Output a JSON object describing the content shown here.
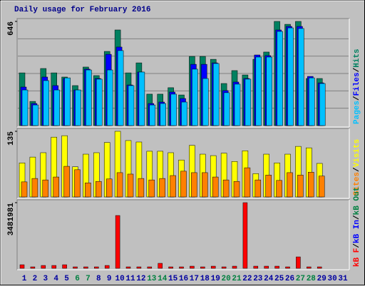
{
  "chart_data": [
    {
      "type": "bar",
      "title": "Daily usage for February 2016",
      "ylim": [
        0,
        646
      ],
      "yticks": [
        646
      ],
      "legend_separator": "/",
      "series": [
        {
          "name": "Hits",
          "color": "#008060",
          "values": [
            327,
            150,
            354,
            327,
            301,
            248,
            363,
            310,
            460,
            593,
            327,
            389,
            195,
            195,
            235,
            190,
            429,
            429,
            411,
            261,
            341,
            314,
            411,
            456,
            646,
            628,
            646,
            292,
            292,
            null,
            null
          ]
        },
        {
          "name": "Files",
          "color": "#0000ff",
          "values": [
            239,
            137,
            301,
            248,
            292,
            221,
            350,
            292,
            442,
            487,
            252,
            332,
            137,
            146,
            208,
            168,
            380,
            380,
            389,
            217,
            270,
            292,
            438,
            434,
            593,
            615,
            615,
            305,
            265,
            null,
            null
          ]
        },
        {
          "name": "Pages",
          "color": "#00c0ff",
          "values": [
            221,
            128,
            279,
            221,
            296,
            221,
            345,
            288,
            345,
            465,
            248,
            332,
            128,
            137,
            195,
            146,
            350,
            292,
            385,
            204,
            257,
            288,
            425,
            425,
            584,
            606,
            602,
            296,
            261,
            null,
            null
          ]
        }
      ]
    },
    {
      "type": "bar",
      "ylim": [
        0,
        135
      ],
      "yticks": [
        135
      ],
      "legend_separator": "/",
      "series": [
        {
          "name": "Visits",
          "color": "#ffff00",
          "values": [
            70,
            82,
            91,
            123,
            126,
            62,
            88,
            91,
            112,
            135,
            116,
            113,
            94,
            94,
            91,
            76,
            106,
            88,
            85,
            90,
            73,
            95,
            48,
            88,
            70,
            88,
            104,
            101,
            69,
            null,
            null
          ]
        },
        {
          "name": "Sites",
          "color": "#ff8000",
          "values": [
            31,
            38,
            35,
            41,
            63,
            56,
            29,
            32,
            37,
            50,
            47,
            38,
            35,
            38,
            44,
            53,
            50,
            50,
            41,
            35,
            32,
            60,
            35,
            45,
            34,
            50,
            45,
            51,
            43,
            null,
            null
          ]
        }
      ]
    },
    {
      "type": "bar",
      "ylim": [
        0,
        3481981
      ],
      "yticks": [
        3481981
      ],
      "legend_separator": "/",
      "categories": [
        "1",
        "2",
        "3",
        "4",
        "5",
        "6",
        "7",
        "8",
        "9",
        "10",
        "11",
        "12",
        "13",
        "14",
        "15",
        "16",
        "17",
        "18",
        "19",
        "20",
        "21",
        "22",
        "23",
        "24",
        "25",
        "26",
        "27",
        "28",
        "29",
        "30",
        "31"
      ],
      "category_colors": [
        "#0000a0",
        "#0000a0",
        "#0000a0",
        "#0000a0",
        "#0000a0",
        "#008040",
        "#008040",
        "#0000a0",
        "#0000a0",
        "#0000a0",
        "#0000a0",
        "#0000a0",
        "#008040",
        "#008040",
        "#0000a0",
        "#0000a0",
        "#0000a0",
        "#0000a0",
        "#0000a0",
        "#008040",
        "#008040",
        "#0000a0",
        "#0000a0",
        "#0000a0",
        "#0000a0",
        "#0000a0",
        "#008040",
        "#008040",
        "#0000a0",
        "#0000a0",
        "#0000a0"
      ],
      "series": [
        {
          "name": "kB F",
          "color": "#ff0000",
          "values": [
            189000,
            76000,
            151000,
            151000,
            189000,
            76000,
            76000,
            76000,
            151000,
            2800724,
            76000,
            76000,
            76000,
            265000,
            76000,
            76000,
            113000,
            76000,
            113000,
            76000,
            113000,
            3481981,
            113000,
            113000,
            113000,
            76000,
            605000,
            76000,
            76000,
            null,
            null
          ]
        }
      ],
      "legend_extra": [
        {
          "name": "kB In",
          "color": "#0000ff"
        },
        {
          "name": "kB Out",
          "color": "#008040"
        }
      ]
    }
  ]
}
